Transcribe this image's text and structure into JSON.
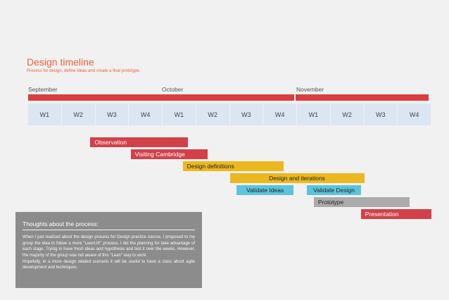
{
  "header": {
    "title": "Design timeline",
    "subtitle": "Process for design, define ideas and create a final prototype."
  },
  "months": [
    "September",
    "October",
    "November"
  ],
  "weeks": [
    "W1",
    "W2",
    "W3",
    "W4",
    "W1",
    "W2",
    "W3",
    "W4",
    "W1",
    "W2",
    "W3",
    "W4"
  ],
  "colors": {
    "accent": "#e8613d",
    "month_bar": "#d93d3d",
    "week_cell": "#dbe6f3",
    "red": "#d2404a",
    "yellow": "#ebb81f",
    "cyan": "#5cc4dc",
    "gray": "#ababab",
    "notes_bg": "#8c8c8c"
  },
  "chart_data": {
    "type": "gantt",
    "x_unit": "week",
    "x_range": [
      0,
      12
    ],
    "tasks": [
      {
        "name": "Observation",
        "start": 1.85,
        "end": 4.75,
        "color": "red"
      },
      {
        "name": "Visiting Cambridge",
        "start": 3.05,
        "end": 5.35,
        "color": "red"
      },
      {
        "name": "Design definitions",
        "start": 4.6,
        "end": 7.6,
        "color": "yellow"
      },
      {
        "name": "Design and iterations",
        "start": 6.0,
        "end": 10.0,
        "color": "yellow",
        "align": "center"
      },
      {
        "name": "Validate Ideas",
        "start": 6.2,
        "end": 7.9,
        "color": "cyan",
        "align": "center"
      },
      {
        "name": "Validate Design",
        "start": 8.3,
        "end": 9.9,
        "color": "cyan",
        "align": "center"
      },
      {
        "name": "Prototype",
        "start": 8.5,
        "end": 11.35,
        "color": "gray"
      },
      {
        "name": "Presentation",
        "start": 9.9,
        "end": 12.0,
        "color": "red"
      }
    ]
  },
  "notes": {
    "title": "Thoughts about the process:",
    "body": "When I just realized about the design process for Design practice course, I proposed to my group the idea to follow a more \"LeanUX\" process. I did the planning for take advantage of each stage. Trying to have fresh ideas and hypothesis and test it over the weeks. However, the majority of the group was not aware of this \"Lean\" way to work.\nHopefully, in a more design related scenario it will be useful to have a class about agile development and techniques."
  }
}
